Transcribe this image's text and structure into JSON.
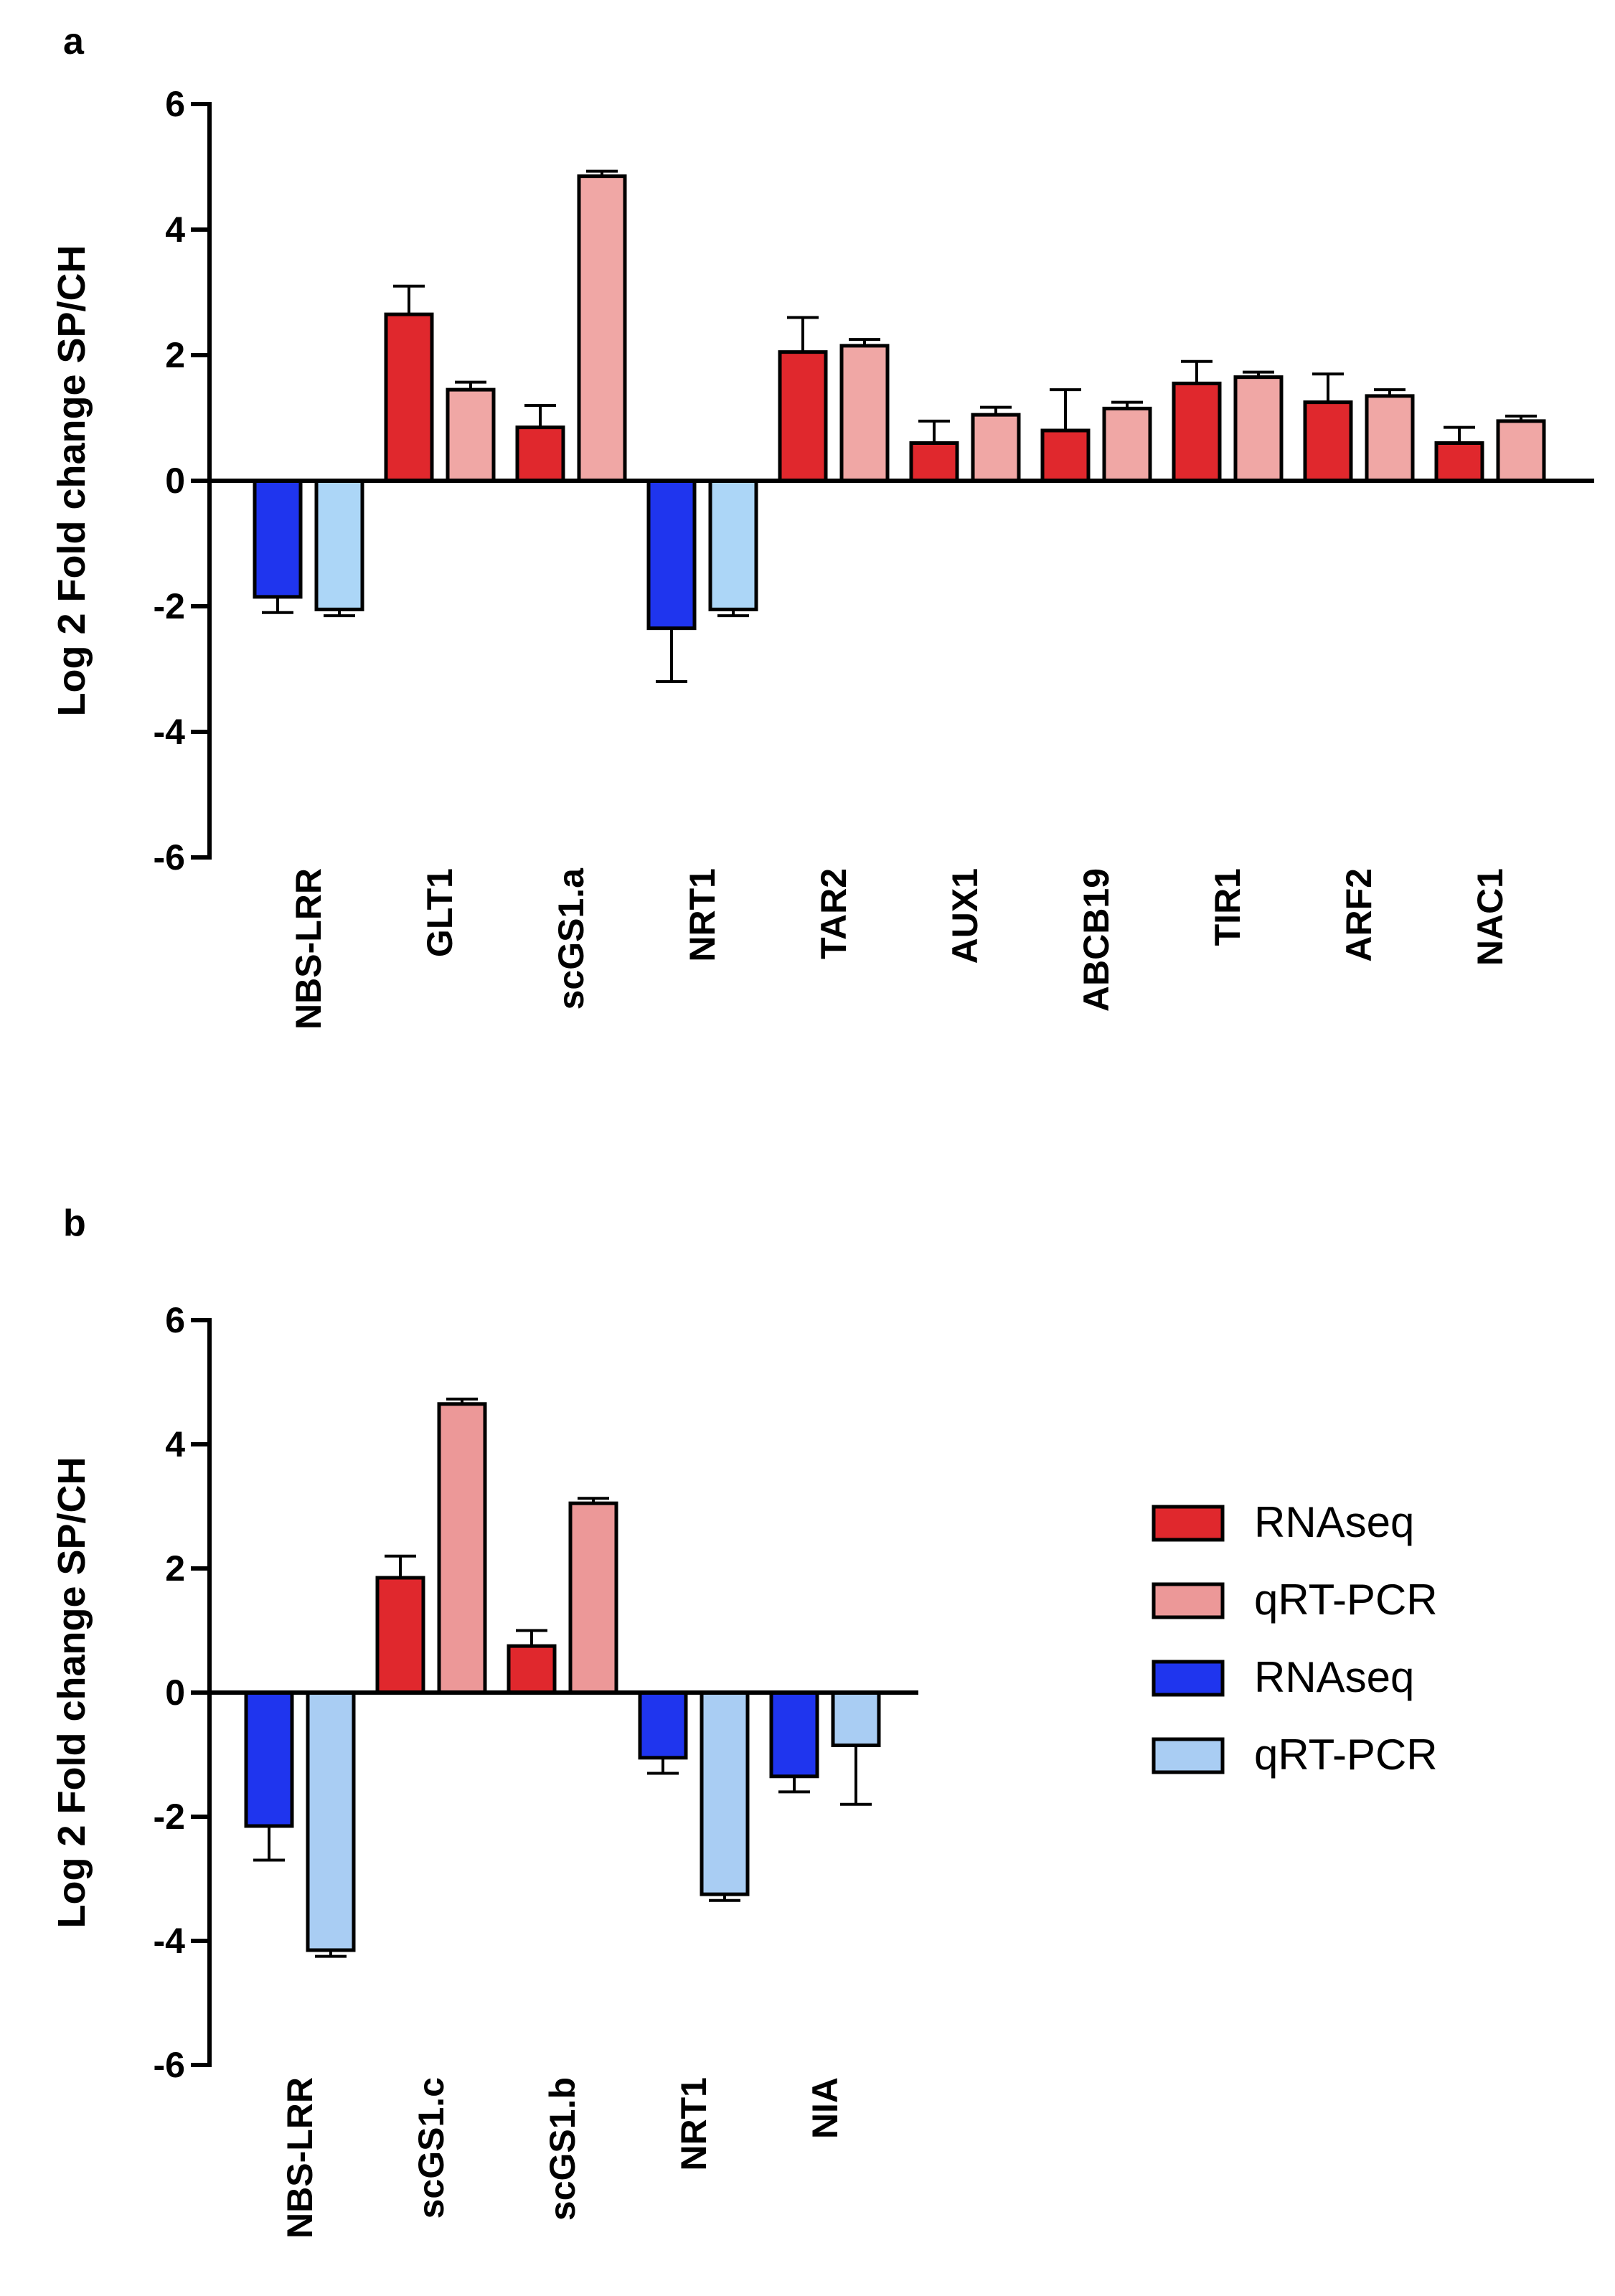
{
  "colors": {
    "up_rnaseq": "#e0282d",
    "up_qrtpcr": "#f0a7a5",
    "up_qrtpcr_b": "#ec9898",
    "down_rnaseq": "#1f35ee",
    "down_qrtpcr": "#acd6f7",
    "down_qrtpcr_b": "#a9cdf3",
    "axis": "#000000"
  },
  "legend": {
    "items": [
      {
        "label": "RNAseq",
        "color": "#e0282d"
      },
      {
        "label": "qRT-PCR",
        "color": "#ec9898"
      },
      {
        "label": "RNAseq",
        "color": "#1f35ee"
      },
      {
        "label": "qRT-PCR",
        "color": "#a9cdf3"
      }
    ]
  },
  "chart_data": [
    {
      "panel": "a",
      "type": "bar",
      "ylabel": "Log 2 Fold  change SP/CH",
      "xlabel": "",
      "ylim": [
        -6,
        6
      ],
      "yticks": [
        6,
        4,
        2,
        0,
        -2,
        -4,
        -6
      ],
      "categories": [
        "NBS-LRR",
        "GLT1",
        "scGS1.a",
        "NRT1",
        "TAR2",
        "AUX1",
        "ABCB19",
        "TIR1",
        "ARF2",
        "NAC1"
      ],
      "series": [
        {
          "name": "RNAseq",
          "values": [
            -1.85,
            2.65,
            0.85,
            -2.35,
            2.05,
            0.6,
            0.8,
            1.55,
            1.25,
            0.6
          ],
          "errors": [
            0.25,
            0.45,
            0.35,
            0.85,
            0.55,
            0.35,
            0.65,
            0.35,
            0.45,
            0.25
          ]
        },
        {
          "name": "qRT-PCR",
          "values": [
            -2.05,
            1.45,
            4.85,
            -2.05,
            2.15,
            1.05,
            1.15,
            1.65,
            1.35,
            0.95
          ],
          "errors": [
            0.1,
            0.12,
            0.08,
            0.1,
            0.1,
            0.12,
            0.1,
            0.08,
            0.1,
            0.08
          ]
        }
      ]
    },
    {
      "panel": "b",
      "type": "bar",
      "ylabel": "Log 2 Fold  change SP/CH",
      "xlabel": "",
      "ylim": [
        -6,
        6
      ],
      "yticks": [
        6,
        4,
        2,
        0,
        -2,
        -4,
        -6
      ],
      "categories": [
        "NBS-LRR",
        "scGS1.c",
        "scGS1.b",
        "NRT1",
        "NIA"
      ],
      "series": [
        {
          "name": "RNAseq",
          "values": [
            -2.15,
            1.85,
            0.75,
            -1.05,
            -1.35
          ],
          "errors": [
            0.55,
            0.35,
            0.25,
            0.25,
            0.25
          ]
        },
        {
          "name": "qRT-PCR",
          "values": [
            -4.15,
            4.65,
            3.05,
            -3.25,
            -0.85
          ],
          "errors": [
            0.1,
            0.08,
            0.08,
            0.1,
            0.95
          ]
        }
      ]
    }
  ]
}
